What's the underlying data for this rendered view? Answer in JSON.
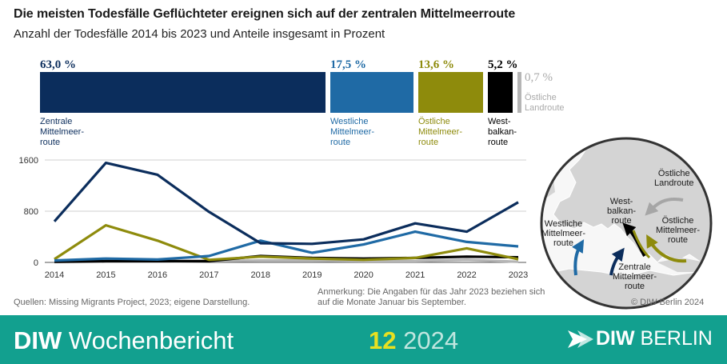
{
  "header": {
    "title": "Die meisten Todesfälle Geflüchteter ereignen sich auf der zentralen Mittelmeerroute",
    "subtitle": "Anzahl der Todesfälle 2014 bis 2023 und Anteile insgesamt in Prozent"
  },
  "shares": [
    {
      "pct_label": "63,0 %",
      "value": 63.0,
      "label": "Zentrale\nMittelmeer-\nroute",
      "color": "#0b2d5c"
    },
    {
      "pct_label": "17,5 %",
      "value": 17.5,
      "label": "Westliche\nMittelmeer-\nroute",
      "color": "#1f6aa5"
    },
    {
      "pct_label": "13,6 %",
      "value": 13.6,
      "label": "Östliche\nMittelmeer-\nroute",
      "color": "#8e8b0c"
    },
    {
      "pct_label": "5,2 %",
      "value": 5.2,
      "label": "West-\nbalkan-\nroute",
      "color": "#000000"
    },
    {
      "pct_label": "0,7 %",
      "value": 0.7,
      "label": "Östliche\nLandroute",
      "color": "#b5b5b5"
    }
  ],
  "chart_data": {
    "type": "line",
    "x": [
      2014,
      2015,
      2016,
      2017,
      2018,
      2019,
      2020,
      2021,
      2022,
      2023
    ],
    "ylim": [
      0,
      1600
    ],
    "yticks": [
      0,
      800,
      1600
    ],
    "series": [
      {
        "name": "Zentrale Mittelmeerroute",
        "color": "#0b2d5c",
        "values": [
          640,
          1555,
          1370,
          790,
          300,
          290,
          360,
          610,
          480,
          940
        ]
      },
      {
        "name": "Westliche Mittelmeerroute",
        "color": "#1f6aa5",
        "values": [
          30,
          60,
          45,
          100,
          340,
          150,
          280,
          480,
          320,
          250
        ]
      },
      {
        "name": "Östliche Mittelmeerroute",
        "color": "#8e8b0c",
        "values": [
          50,
          580,
          340,
          40,
          90,
          60,
          40,
          70,
          220,
          50
        ]
      },
      {
        "name": "Westbalkanroute",
        "color": "#000000",
        "values": [
          10,
          20,
          20,
          20,
          100,
          70,
          60,
          70,
          90,
          80
        ]
      },
      {
        "name": "Östliche Landroute",
        "color": "#b5b5b5",
        "values": [
          5,
          10,
          10,
          20,
          30,
          30,
          20,
          20,
          40,
          10
        ]
      }
    ]
  },
  "map": {
    "labels": {
      "east_land": "Östliche\nLandroute",
      "west_balkan": "West-\nbalkan-\nroute",
      "east_med": "Östliche\nMittelmeer-\nroute",
      "west_med": "Westliche\nMittelmeer-\nroute",
      "central_med": "Zentrale\nMittelmeer-\nroute"
    }
  },
  "footer": {
    "source": "Quellen: Missing Migrants Project, 2023; eigene Darstellung.",
    "note": "Anmerkung: Die Angaben für das Jahr 2023 beziehen sich\nauf die Monate Januar bis September.",
    "copyright": "© DIW Berlin 2024",
    "brand_bold": "DIW",
    "brand_rest": " Wochenbericht",
    "issue_number": "12",
    "issue_year": " 2024",
    "logo_bold": "DIW",
    "logo_rest": " BERLIN"
  }
}
